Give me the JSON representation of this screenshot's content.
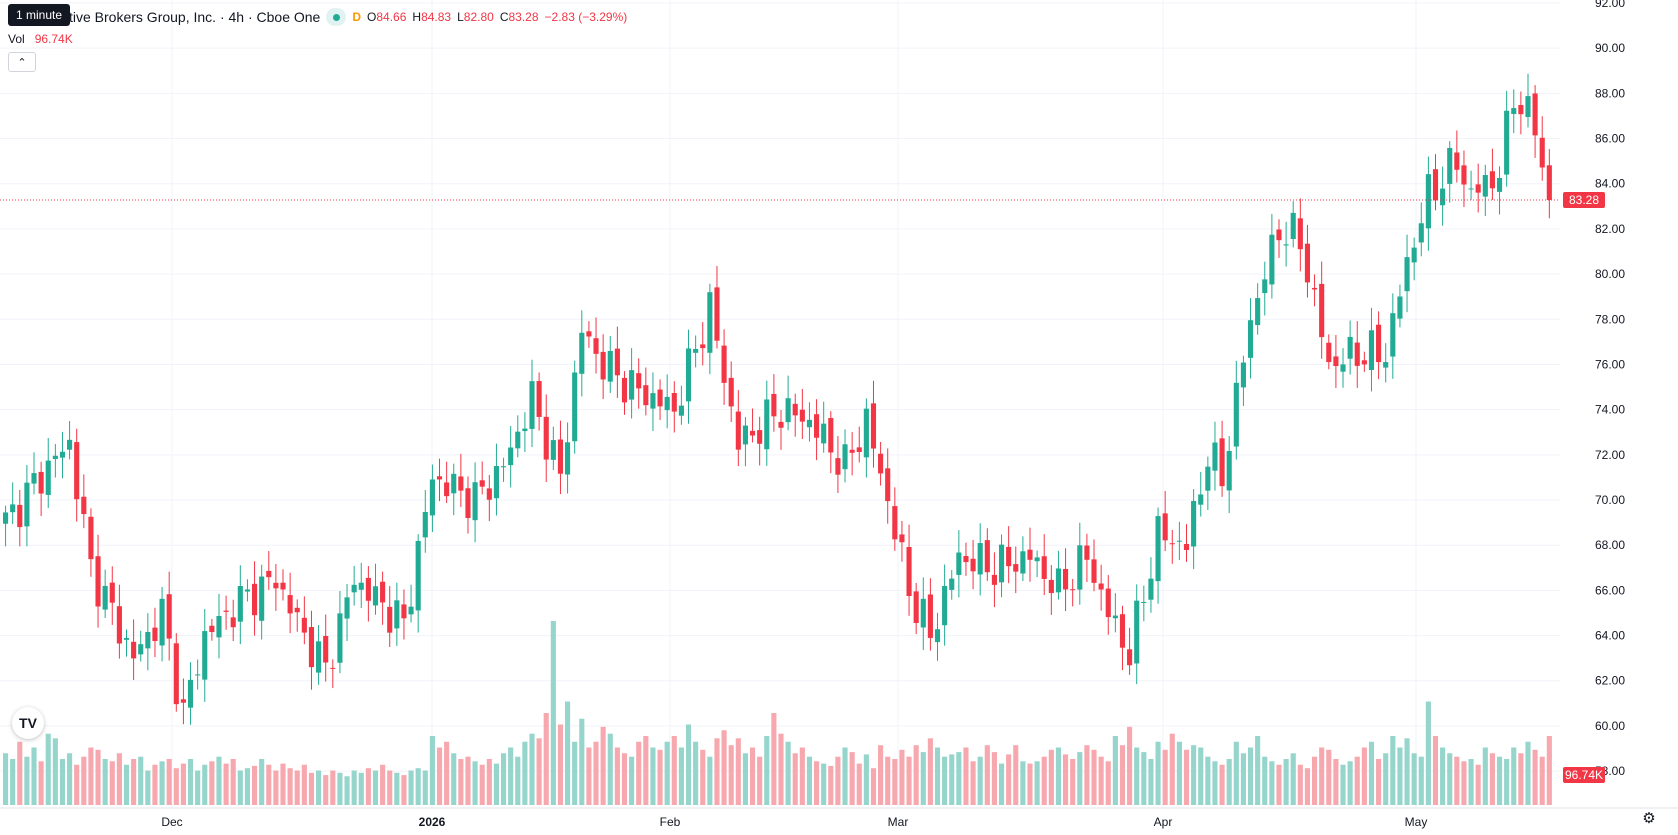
{
  "tooltip": "1 minute",
  "legend": {
    "title": "ctive Brokers Group, Inc. · 4h · Cboe One",
    "status_badge": "D",
    "o_label": "O",
    "o_value": "84.66",
    "h_label": "H",
    "h_value": "84.83",
    "l_label": "L",
    "l_value": "82.80",
    "c_label": "C",
    "c_value": "83.28",
    "change": "−2.83 (−3.29%)",
    "vol_label": "Vol",
    "vol_value": "96.74K"
  },
  "colors": {
    "up": "#22ab94",
    "down": "#f23645",
    "up_vol": "#95d5cc",
    "down_vol": "#f7a8ae",
    "grid": "#f0f3fa"
  },
  "chart_data": {
    "type": "candlestick",
    "interval": "4h",
    "y_range": [
      56.5,
      92
    ],
    "y_ticks": [
      "92.00",
      "90.00",
      "88.00",
      "86.00",
      "84.00",
      "82.00",
      "80.00",
      "78.00",
      "76.00",
      "74.00",
      "72.00",
      "70.00",
      "68.00",
      "66.00",
      "64.00",
      "62.00",
      "60.00",
      "58.00"
    ],
    "x_labels": [
      "Dec",
      "2026",
      "Feb",
      "Mar",
      "Apr",
      "May"
    ],
    "last_price_label": "83.28",
    "last_price": 83.28,
    "volume_label": "96.74K",
    "anchors": [
      [
        0,
        69
      ],
      [
        6,
        71.5
      ],
      [
        9,
        72.5
      ],
      [
        12,
        67
      ],
      [
        18,
        63
      ],
      [
        22,
        65
      ],
      [
        25,
        60.5
      ],
      [
        28,
        64
      ],
      [
        33,
        65.5
      ],
      [
        38,
        66.5
      ],
      [
        42,
        64
      ],
      [
        45,
        62.5
      ],
      [
        49,
        66.5
      ],
      [
        56,
        64.5
      ],
      [
        60,
        71
      ],
      [
        66,
        70
      ],
      [
        70,
        71.5
      ],
      [
        74,
        74.5
      ],
      [
        78,
        71
      ],
      [
        81,
        77.5
      ],
      [
        84,
        76
      ],
      [
        88,
        75
      ],
      [
        94,
        74
      ],
      [
        99,
        78.5
      ],
      [
        103,
        72.5
      ],
      [
        109,
        74
      ],
      [
        113,
        73.5
      ],
      [
        118,
        71.5
      ],
      [
        121,
        73.5
      ],
      [
        124,
        70
      ],
      [
        127,
        66
      ],
      [
        130,
        64
      ],
      [
        134,
        67.5
      ],
      [
        139,
        67
      ],
      [
        144,
        67.5
      ],
      [
        148,
        66
      ],
      [
        152,
        67.5
      ],
      [
        155,
        65
      ],
      [
        158,
        63.2
      ],
      [
        162,
        68.5
      ],
      [
        166,
        68
      ],
      [
        169,
        72
      ],
      [
        171,
        71
      ],
      [
        175,
        78
      ],
      [
        179,
        82
      ],
      [
        182,
        81.5
      ],
      [
        186,
        76
      ],
      [
        190,
        76.5
      ],
      [
        194,
        76.5
      ],
      [
        197,
        80.5
      ],
      [
        200,
        83.5
      ],
      [
        204,
        85
      ],
      [
        206,
        83.5
      ],
      [
        210,
        84.5
      ],
      [
        212,
        88
      ],
      [
        215,
        86.5
      ],
      [
        217,
        83.28
      ]
    ],
    "volumes": [
      0.45,
      0.4,
      0.55,
      0.42,
      0.5,
      0.38,
      0.62,
      0.58,
      0.4,
      0.45,
      0.35,
      0.42,
      0.5,
      0.48,
      0.4,
      0.38,
      0.45,
      0.35,
      0.4,
      0.42,
      0.3,
      0.35,
      0.38,
      0.4,
      0.32,
      0.36,
      0.4,
      0.3,
      0.35,
      0.38,
      0.42,
      0.36,
      0.4,
      0.3,
      0.32,
      0.34,
      0.4,
      0.35,
      0.3,
      0.36,
      0.32,
      0.3,
      0.35,
      0.28,
      0.3,
      0.26,
      0.3,
      0.28,
      0.25,
      0.3,
      0.28,
      0.32,
      0.3,
      0.35,
      0.3,
      0.28,
      0.26,
      0.3,
      0.32,
      0.3,
      0.6,
      0.5,
      0.55,
      0.45,
      0.4,
      0.42,
      0.38,
      0.35,
      0.4,
      0.36,
      0.45,
      0.5,
      0.42,
      0.55,
      0.62,
      0.58,
      0.8,
      1.6,
      0.7,
      0.9,
      0.55,
      0.75,
      0.5,
      0.55,
      0.68,
      0.62,
      0.5,
      0.45,
      0.42,
      0.55,
      0.6,
      0.5,
      0.48,
      0.55,
      0.6,
      0.5,
      0.7,
      0.55,
      0.48,
      0.42,
      0.58,
      0.65,
      0.52,
      0.58,
      0.45,
      0.5,
      0.42,
      0.6,
      0.8,
      0.62,
      0.55,
      0.45,
      0.5,
      0.42,
      0.38,
      0.36,
      0.34,
      0.42,
      0.5,
      0.46,
      0.36,
      0.44,
      0.32,
      0.52,
      0.42,
      0.4,
      0.48,
      0.42,
      0.52,
      0.46,
      0.58,
      0.5,
      0.42,
      0.44,
      0.46,
      0.5,
      0.38,
      0.42,
      0.52,
      0.46,
      0.36,
      0.44,
      0.52,
      0.38,
      0.36,
      0.38,
      0.42,
      0.48,
      0.5,
      0.44,
      0.4,
      0.46,
      0.52,
      0.48,
      0.42,
      0.38,
      0.6,
      0.52,
      0.68,
      0.5,
      0.46,
      0.4,
      0.55,
      0.48,
      0.62,
      0.55,
      0.48,
      0.52,
      0.5,
      0.42,
      0.38,
      0.35,
      0.4,
      0.55,
      0.45,
      0.5,
      0.6,
      0.42,
      0.38,
      0.35,
      0.4,
      0.45,
      0.35,
      0.32,
      0.42,
      0.5,
      0.48,
      0.4,
      0.35,
      0.38,
      0.42,
      0.5,
      0.55,
      0.4,
      0.45,
      0.6,
      0.5,
      0.58,
      0.45,
      0.42,
      0.9,
      0.6,
      0.5,
      0.45,
      0.42,
      0.38,
      0.4,
      0.35,
      0.5,
      0.45,
      0.42,
      0.4,
      0.5,
      0.45,
      0.55,
      0.48,
      0.42,
      0.6,
      0.5,
      0.42,
      0.35,
      0.4,
      0.45,
      0.38,
      0.42,
      0.4
    ]
  }
}
